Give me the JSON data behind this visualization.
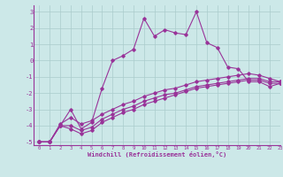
{
  "xlabel": "Windchill (Refroidissement éolien,°C)",
  "xlim": [
    -0.5,
    23
  ],
  "ylim": [
    -5.2,
    3.4
  ],
  "xticks": [
    0,
    1,
    2,
    3,
    4,
    5,
    6,
    7,
    8,
    9,
    10,
    11,
    12,
    13,
    14,
    15,
    16,
    17,
    18,
    19,
    20,
    21,
    22,
    23
  ],
  "yticks": [
    -5,
    -4,
    -3,
    -2,
    -1,
    0,
    1,
    2,
    3
  ],
  "bg_color": "#cce8e8",
  "line_color": "#993399",
  "grid_color": "#aacccc",
  "line1_x": [
    0,
    1,
    2,
    3,
    4,
    5,
    6,
    7,
    8,
    9,
    10,
    11,
    12,
    13,
    14,
    15,
    16,
    17,
    18,
    19,
    20,
    21,
    22,
    23
  ],
  "line1_y": [
    -5.0,
    -5.0,
    -4.0,
    -3.0,
    -4.2,
    -3.8,
    -1.7,
    0.0,
    0.3,
    0.7,
    2.6,
    1.5,
    1.9,
    1.7,
    1.6,
    3.0,
    1.1,
    0.8,
    -0.4,
    -0.5,
    -1.3,
    -1.3,
    -1.6,
    -1.4
  ],
  "line2_x": [
    0,
    1,
    2,
    3,
    4,
    5,
    6,
    7,
    8,
    9,
    10,
    11,
    12,
    13,
    14,
    15,
    16,
    17,
    18,
    19,
    20,
    21,
    22,
    23
  ],
  "line2_y": [
    -5.0,
    -5.0,
    -4.0,
    -4.2,
    -4.5,
    -4.3,
    -3.8,
    -3.5,
    -3.2,
    -3.0,
    -2.7,
    -2.5,
    -2.3,
    -2.1,
    -1.9,
    -1.7,
    -1.6,
    -1.5,
    -1.4,
    -1.3,
    -1.2,
    -1.2,
    -1.4,
    -1.4
  ],
  "line3_x": [
    0,
    1,
    2,
    3,
    4,
    5,
    6,
    7,
    8,
    9,
    10,
    11,
    12,
    13,
    14,
    15,
    16,
    17,
    18,
    19,
    20,
    21,
    22,
    23
  ],
  "line3_y": [
    -5.0,
    -5.0,
    -4.0,
    -4.0,
    -4.3,
    -4.1,
    -3.6,
    -3.3,
    -3.0,
    -2.8,
    -2.5,
    -2.3,
    -2.1,
    -2.0,
    -1.8,
    -1.6,
    -1.5,
    -1.4,
    -1.3,
    -1.2,
    -1.1,
    -1.1,
    -1.3,
    -1.3
  ],
  "line4_x": [
    0,
    1,
    2,
    3,
    4,
    5,
    6,
    7,
    8,
    9,
    10,
    11,
    12,
    13,
    14,
    15,
    16,
    17,
    18,
    19,
    20,
    21,
    22,
    23
  ],
  "line4_y": [
    -5.0,
    -5.0,
    -3.9,
    -3.5,
    -3.9,
    -3.7,
    -3.3,
    -3.0,
    -2.7,
    -2.5,
    -2.2,
    -2.0,
    -1.8,
    -1.7,
    -1.5,
    -1.3,
    -1.2,
    -1.1,
    -1.0,
    -0.9,
    -0.8,
    -0.9,
    -1.1,
    -1.3
  ]
}
